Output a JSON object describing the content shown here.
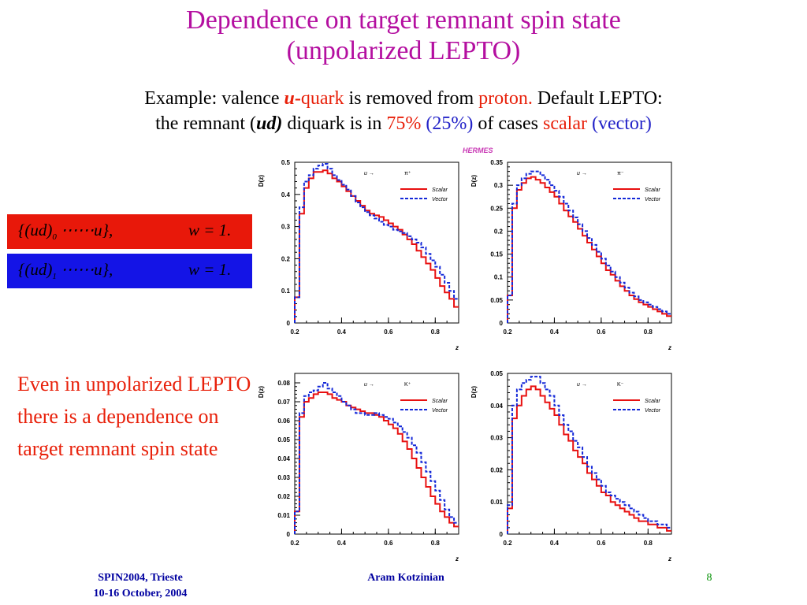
{
  "title": {
    "line1": "Dependence on target remnant spin state",
    "line2": "(unpolarized LEPTO)"
  },
  "intro": {
    "t1": "Example: valence ",
    "u_italic": "u",
    "dash": "-",
    "quark": "quark",
    "t2": " is removed from ",
    "proton": "proton.",
    "t3": " Default LEPTO:",
    "t4": "the remnant (",
    "ud": "ud)",
    "t5": " diquark is in ",
    "p75": "75%",
    "p25": " (25%)",
    "t6": " of cases ",
    "scalar": "scalar",
    "vector": " (vector)"
  },
  "equations": {
    "red": {
      "open": "{(ud)",
      "sub": "0",
      "rest": " ⋯⋯u},",
      "w": "w = 1."
    },
    "blue": {
      "open": "{(ud)",
      "sub": "1",
      "rest": " ⋯⋯u},",
      "w": "w = 1."
    }
  },
  "note": "Even in unpolarized LEPTO there is a dependence on target remnant spin state",
  "hermes": "HERMES",
  "footer": {
    "left_line1": "SPIN2004, Trieste",
    "left_line2": "10-16 October, 2004",
    "center": "Aram Kotzinian",
    "page": "8"
  },
  "colors": {
    "title": "#b40fa0",
    "red": "#e8200a",
    "blue": "#2323c8",
    "footer": "#0000a0",
    "page": "#008f00"
  },
  "chart_data": [
    {
      "type": "line",
      "ylabel": "D(z)",
      "xlabel": "z",
      "process": "u →",
      "hadron": "π⁺",
      "xlim": [
        0.2,
        0.9
      ],
      "ylim": [
        0,
        0.5
      ],
      "yticks": [
        "0",
        "0.1",
        "0.2",
        "0.3",
        "0.4",
        "0.5"
      ],
      "xticks": [
        "0.2",
        "0.4",
        "0.6",
        "0.8"
      ],
      "x": [
        0.2,
        0.22,
        0.24,
        0.26,
        0.28,
        0.3,
        0.32,
        0.34,
        0.36,
        0.38,
        0.4,
        0.42,
        0.44,
        0.46,
        0.48,
        0.5,
        0.52,
        0.54,
        0.56,
        0.58,
        0.6,
        0.62,
        0.64,
        0.66,
        0.68,
        0.7,
        0.72,
        0.74,
        0.76,
        0.78,
        0.8,
        0.82,
        0.84,
        0.86,
        0.88
      ],
      "series": [
        {
          "name": "Scalar",
          "values": [
            0.08,
            0.34,
            0.42,
            0.45,
            0.47,
            0.47,
            0.475,
            0.465,
            0.45,
            0.44,
            0.425,
            0.41,
            0.395,
            0.38,
            0.365,
            0.35,
            0.34,
            0.335,
            0.33,
            0.32,
            0.31,
            0.3,
            0.29,
            0.275,
            0.26,
            0.245,
            0.225,
            0.205,
            0.185,
            0.165,
            0.14,
            0.115,
            0.095,
            0.075,
            0.05
          ]
        },
        {
          "name": "Vector",
          "values": [
            0.08,
            0.36,
            0.44,
            0.46,
            0.48,
            0.49,
            0.495,
            0.48,
            0.46,
            0.445,
            0.43,
            0.415,
            0.395,
            0.375,
            0.36,
            0.345,
            0.335,
            0.325,
            0.315,
            0.305,
            0.3,
            0.29,
            0.285,
            0.28,
            0.27,
            0.26,
            0.25,
            0.235,
            0.215,
            0.195,
            0.175,
            0.15,
            0.125,
            0.1,
            0.075
          ]
        }
      ]
    },
    {
      "type": "line",
      "ylabel": "D(z)",
      "xlabel": "z",
      "process": "u →",
      "hadron": "π⁻",
      "xlim": [
        0.2,
        0.9
      ],
      "ylim": [
        0,
        0.35
      ],
      "yticks": [
        "0",
        "0.05",
        "0.1",
        "0.15",
        "0.2",
        "0.25",
        "0.3",
        "0.35"
      ],
      "xticks": [
        "0.2",
        "0.4",
        "0.6",
        "0.8"
      ],
      "x": [
        0.2,
        0.22,
        0.24,
        0.26,
        0.28,
        0.3,
        0.32,
        0.34,
        0.36,
        0.38,
        0.4,
        0.42,
        0.44,
        0.46,
        0.48,
        0.5,
        0.52,
        0.54,
        0.56,
        0.58,
        0.6,
        0.62,
        0.64,
        0.66,
        0.68,
        0.7,
        0.72,
        0.74,
        0.76,
        0.78,
        0.8,
        0.82,
        0.84,
        0.86,
        0.88
      ],
      "series": [
        {
          "name": "Scalar",
          "values": [
            0.06,
            0.25,
            0.29,
            0.305,
            0.315,
            0.318,
            0.312,
            0.305,
            0.295,
            0.285,
            0.275,
            0.26,
            0.245,
            0.232,
            0.22,
            0.205,
            0.19,
            0.175,
            0.16,
            0.145,
            0.13,
            0.115,
            0.105,
            0.092,
            0.08,
            0.07,
            0.06,
            0.052,
            0.045,
            0.04,
            0.035,
            0.03,
            0.025,
            0.02,
            0.015
          ]
        },
        {
          "name": "Vector",
          "values": [
            0.06,
            0.26,
            0.3,
            0.315,
            0.325,
            0.33,
            0.33,
            0.322,
            0.312,
            0.3,
            0.288,
            0.275,
            0.26,
            0.245,
            0.23,
            0.215,
            0.2,
            0.185,
            0.17,
            0.155,
            0.14,
            0.125,
            0.112,
            0.1,
            0.088,
            0.077,
            0.066,
            0.058,
            0.05,
            0.045,
            0.04,
            0.035,
            0.03,
            0.025,
            0.02
          ]
        }
      ]
    },
    {
      "type": "line",
      "ylabel": "D(z)",
      "xlabel": "z",
      "process": "u →",
      "hadron": "K⁺",
      "xlim": [
        0.2,
        0.9
      ],
      "ylim": [
        0,
        0.085
      ],
      "yticks": [
        "0",
        "0.01",
        "0.02",
        "0.03",
        "0.04",
        "0.05",
        "0.06",
        "0.07",
        "0.08"
      ],
      "xticks": [
        "0.2",
        "0.4",
        "0.6",
        "0.8"
      ],
      "x": [
        0.2,
        0.22,
        0.24,
        0.26,
        0.28,
        0.3,
        0.32,
        0.34,
        0.36,
        0.38,
        0.4,
        0.42,
        0.44,
        0.46,
        0.48,
        0.5,
        0.52,
        0.54,
        0.56,
        0.58,
        0.6,
        0.62,
        0.64,
        0.66,
        0.68,
        0.7,
        0.72,
        0.74,
        0.76,
        0.78,
        0.8,
        0.82,
        0.84,
        0.86,
        0.88
      ],
      "series": [
        {
          "name": "Scalar",
          "values": [
            0.012,
            0.062,
            0.07,
            0.072,
            0.074,
            0.075,
            0.075,
            0.074,
            0.072,
            0.071,
            0.07,
            0.068,
            0.067,
            0.066,
            0.065,
            0.064,
            0.064,
            0.063,
            0.062,
            0.06,
            0.058,
            0.056,
            0.053,
            0.049,
            0.045,
            0.04,
            0.035,
            0.03,
            0.025,
            0.02,
            0.016,
            0.012,
            0.009,
            0.006,
            0.004
          ]
        },
        {
          "name": "Vector",
          "values": [
            0.012,
            0.064,
            0.073,
            0.075,
            0.076,
            0.078,
            0.08,
            0.077,
            0.075,
            0.073,
            0.07,
            0.068,
            0.066,
            0.064,
            0.064,
            0.063,
            0.063,
            0.064,
            0.063,
            0.062,
            0.061,
            0.059,
            0.057,
            0.054,
            0.051,
            0.047,
            0.043,
            0.038,
            0.033,
            0.028,
            0.023,
            0.018,
            0.013,
            0.009,
            0.006
          ]
        }
      ]
    },
    {
      "type": "line",
      "ylabel": "D(z)",
      "xlabel": "z",
      "process": "u →",
      "hadron": "K⁻",
      "xlim": [
        0.2,
        0.9
      ],
      "ylim": [
        0,
        0.05
      ],
      "yticks": [
        "0",
        "0.01",
        "0.02",
        "0.03",
        "0.04",
        "0.05"
      ],
      "xticks": [
        "0.2",
        "0.4",
        "0.6",
        "0.8"
      ],
      "x": [
        0.2,
        0.22,
        0.24,
        0.26,
        0.28,
        0.3,
        0.32,
        0.34,
        0.36,
        0.38,
        0.4,
        0.42,
        0.44,
        0.46,
        0.48,
        0.5,
        0.52,
        0.54,
        0.56,
        0.58,
        0.6,
        0.62,
        0.64,
        0.66,
        0.68,
        0.7,
        0.72,
        0.74,
        0.76,
        0.78,
        0.8,
        0.82,
        0.84,
        0.86,
        0.88
      ],
      "series": [
        {
          "name": "Scalar",
          "values": [
            0.008,
            0.036,
            0.04,
            0.043,
            0.045,
            0.046,
            0.045,
            0.043,
            0.041,
            0.039,
            0.037,
            0.034,
            0.031,
            0.029,
            0.026,
            0.024,
            0.022,
            0.019,
            0.017,
            0.015,
            0.013,
            0.012,
            0.01,
            0.009,
            0.008,
            0.007,
            0.006,
            0.005,
            0.004,
            0.004,
            0.003,
            0.003,
            0.002,
            0.002,
            0.001
          ]
        },
        {
          "name": "Vector",
          "values": [
            0.009,
            0.04,
            0.045,
            0.047,
            0.048,
            0.049,
            0.049,
            0.047,
            0.045,
            0.043,
            0.04,
            0.037,
            0.034,
            0.032,
            0.029,
            0.027,
            0.024,
            0.021,
            0.019,
            0.017,
            0.015,
            0.013,
            0.012,
            0.011,
            0.01,
            0.009,
            0.008,
            0.007,
            0.006,
            0.005,
            0.004,
            0.004,
            0.003,
            0.003,
            0.002
          ]
        }
      ]
    }
  ]
}
